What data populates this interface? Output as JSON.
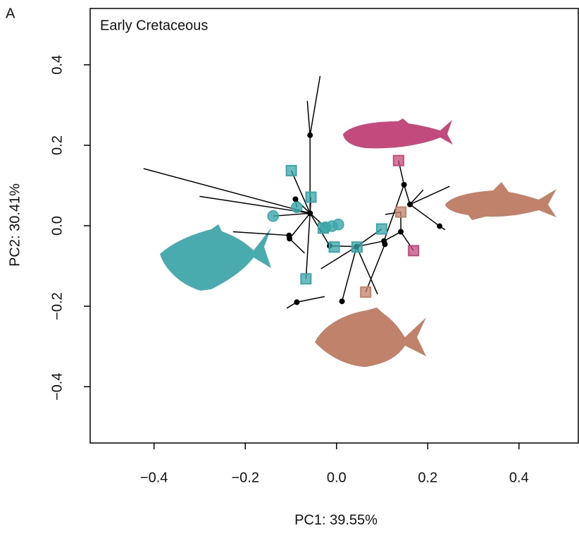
{
  "chart_data": {
    "type": "scatter",
    "panel_label": "A",
    "title": "Early Cretaceous",
    "x_label": "PC1: 39.55%",
    "y_label": "PC2: 30.41%",
    "xlim": [
      -0.54,
      0.53
    ],
    "ylim": [
      -0.54,
      0.54
    ],
    "xticks": [
      {
        "value": -0.4,
        "label": "−0.4"
      },
      {
        "value": -0.2,
        "label": "−0.2"
      },
      {
        "value": 0,
        "label": "0.0"
      },
      {
        "value": 0.2,
        "label": "0.2"
      },
      {
        "value": 0.4,
        "label": "0.4"
      }
    ],
    "yticks": [
      {
        "value": -0.4,
        "label": "−0.4"
      },
      {
        "value": -0.2,
        "label": "−0.2"
      },
      {
        "value": 0,
        "label": "0.0"
      },
      {
        "value": 0.2,
        "label": "0.2"
      },
      {
        "value": 0.4,
        "label": "0.4"
      }
    ],
    "segments": [
      [
        [
          -0.058,
          0.225
        ],
        [
          -0.036,
          0.372
        ]
      ],
      [
        [
          -0.058,
          0.225
        ],
        [
          -0.064,
          0.31
        ]
      ],
      [
        [
          -0.058,
          0.225
        ],
        [
          -0.058,
          0.031
        ]
      ],
      [
        [
          -0.058,
          0.031
        ],
        [
          -0.423,
          0.142
        ]
      ],
      [
        [
          -0.058,
          0.031
        ],
        [
          -0.3,
          0.073
        ]
      ],
      [
        [
          -0.058,
          0.031
        ],
        [
          -0.099,
          0.137
        ]
      ],
      [
        [
          -0.058,
          0.031
        ],
        [
          -0.056,
          0.071
        ]
      ],
      [
        [
          -0.058,
          0.031
        ],
        [
          -0.09,
          0.066
        ]
      ],
      [
        [
          -0.09,
          0.066
        ],
        [
          -0.087,
          0.046
        ]
      ],
      [
        [
          -0.058,
          0.031
        ],
        [
          -0.139,
          0.024
        ]
      ],
      [
        [
          -0.058,
          0.031
        ],
        [
          -0.015,
          -0.05
        ]
      ],
      [
        [
          -0.058,
          0.031
        ],
        [
          -0.067,
          -0.132
        ]
      ],
      [
        [
          -0.058,
          0.031
        ],
        [
          -0.024,
          -0.004
        ]
      ],
      [
        [
          -0.058,
          0.031
        ],
        [
          -0.103,
          -0.032
        ]
      ],
      [
        [
          -0.104,
          -0.024
        ],
        [
          -0.227,
          -0.015
        ]
      ],
      [
        [
          -0.103,
          -0.032
        ],
        [
          -0.07,
          -0.068
        ]
      ],
      [
        [
          -0.015,
          -0.05
        ],
        [
          0.044,
          -0.052
        ]
      ],
      [
        [
          0.044,
          -0.052
        ],
        [
          0.012,
          -0.188
        ]
      ],
      [
        [
          -0.087,
          -0.19
        ],
        [
          -0.109,
          -0.205
        ]
      ],
      [
        [
          -0.087,
          -0.19
        ],
        [
          -0.026,
          -0.176
        ]
      ],
      [
        [
          0.044,
          -0.052
        ],
        [
          -0.034,
          -0.107
        ]
      ],
      [
        [
          0.044,
          -0.052
        ],
        [
          0.099,
          -0.008
        ]
      ],
      [
        [
          0.044,
          -0.052
        ],
        [
          0.104,
          -0.038
        ]
      ],
      [
        [
          0.104,
          -0.038
        ],
        [
          0.141,
          -0.015
        ]
      ],
      [
        [
          0.141,
          -0.015
        ],
        [
          0.141,
          0.034
        ]
      ],
      [
        [
          0.141,
          -0.015
        ],
        [
          0.169,
          -0.062
        ]
      ],
      [
        [
          0.104,
          -0.038
        ],
        [
          0.148,
          0.102
        ]
      ],
      [
        [
          0.148,
          0.102
        ],
        [
          0.136,
          0.162
        ]
      ],
      [
        [
          0.148,
          0.102
        ],
        [
          0.161,
          0.053
        ]
      ],
      [
        [
          0.161,
          0.053
        ],
        [
          0.226,
          -0.001
        ]
      ],
      [
        [
          0.226,
          -0.001
        ],
        [
          0.238,
          -0.01
        ]
      ],
      [
        [
          0.161,
          0.053
        ],
        [
          0.248,
          0.098
        ]
      ],
      [
        [
          0.161,
          0.053
        ],
        [
          0.19,
          0.089
        ]
      ],
      [
        [
          0.044,
          -0.052
        ],
        [
          0.09,
          -0.17
        ]
      ],
      [
        [
          0.106,
          -0.046
        ],
        [
          0.064,
          -0.165
        ]
      ],
      [
        [
          0.141,
          0.034
        ],
        [
          0.107,
          0.028
        ]
      ]
    ],
    "series": [
      {
        "color": "#000000",
        "marker": "dot",
        "x": [
          -0.058,
          -0.09,
          -0.058,
          -0.104,
          -0.103,
          -0.015,
          0.044,
          0.104,
          0.106,
          0.148,
          0.161,
          0.141,
          0.226,
          0.012,
          -0.087
        ],
        "y": [
          0.225,
          0.066,
          0.031,
          -0.024,
          -0.032,
          -0.05,
          -0.052,
          -0.038,
          -0.046,
          0.102,
          0.053,
          -0.015,
          -0.001,
          -0.188,
          -0.19
        ]
      },
      {
        "color": "#3aa6aa",
        "marker": "square",
        "x": [
          -0.099,
          -0.056,
          -0.029,
          -0.005,
          -0.067,
          0.045,
          0.099
        ],
        "y": [
          0.137,
          0.071,
          -0.006,
          -0.053,
          -0.132,
          -0.053,
          -0.008
        ]
      },
      {
        "color": "#3aa6aa",
        "marker": "circle",
        "x": [
          -0.139,
          -0.087,
          -0.024,
          -0.01,
          0.004
        ],
        "y": [
          0.024,
          0.046,
          -0.004,
          -0.001,
          0.003
        ]
      },
      {
        "color": "#c0826a",
        "marker": "square",
        "x": [
          0.141,
          0.064
        ],
        "y": [
          0.034,
          -0.165
        ]
      },
      {
        "color": "#c34a7c",
        "marker": "square",
        "x": [
          0.136,
          0.169
        ],
        "y": [
          0.162,
          -0.062
        ]
      }
    ]
  }
}
